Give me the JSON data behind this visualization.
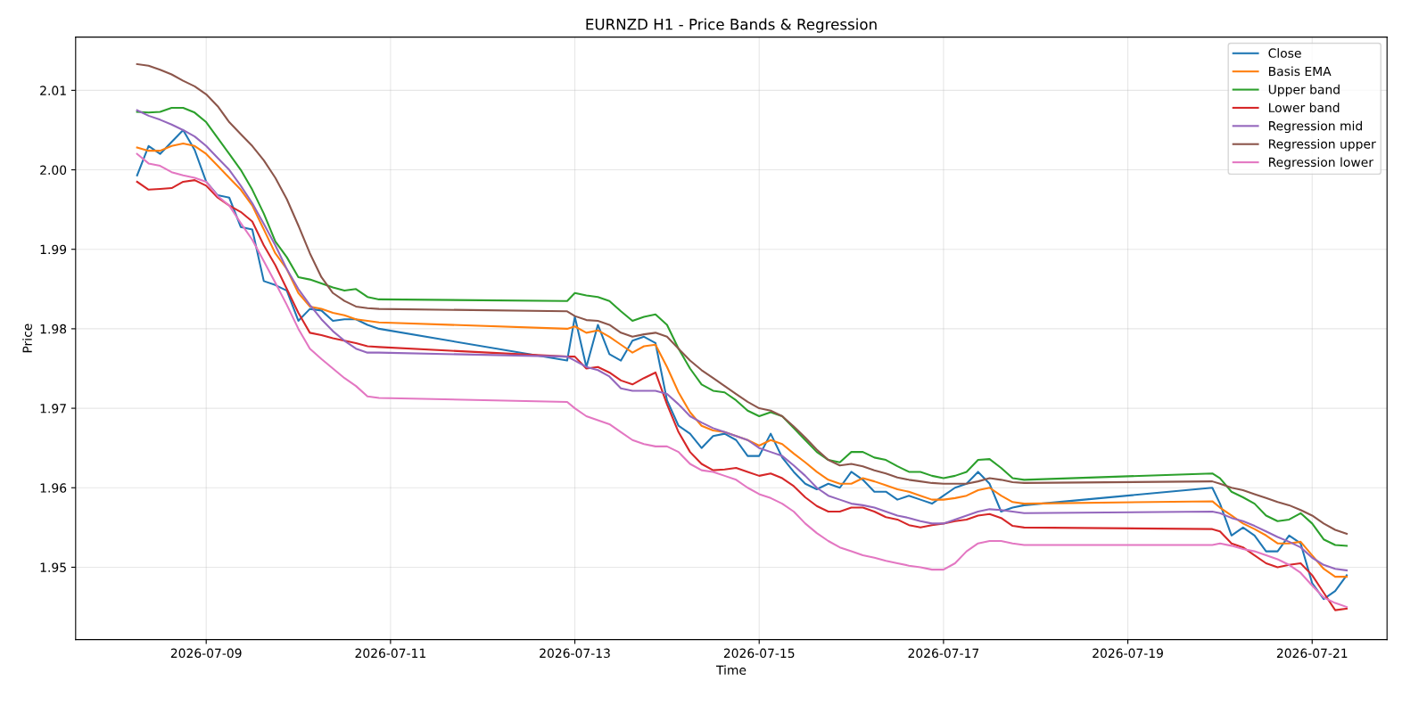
{
  "chart_data": {
    "type": "line",
    "title": "EURNZD H1 - Price Bands & Regression",
    "xlabel": "Time",
    "ylabel": "Price",
    "x": [
      "2026-07-08T06:00",
      "2026-07-08T09:00",
      "2026-07-08T12:00",
      "2026-07-08T15:00",
      "2026-07-08T18:00",
      "2026-07-08T21:00",
      "2026-07-09T00:00",
      "2026-07-09T03:00",
      "2026-07-09T06:00",
      "2026-07-09T09:00",
      "2026-07-09T12:00",
      "2026-07-09T15:00",
      "2026-07-09T18:00",
      "2026-07-09T21:00",
      "2026-07-10T00:00",
      "2026-07-10T03:00",
      "2026-07-10T06:00",
      "2026-07-10T09:00",
      "2026-07-10T12:00",
      "2026-07-10T15:00",
      "2026-07-10T18:00",
      "2026-07-10T21:00",
      "2026-07-12T22:00",
      "2026-07-13T00:00",
      "2026-07-13T03:00",
      "2026-07-13T06:00",
      "2026-07-13T09:00",
      "2026-07-13T12:00",
      "2026-07-13T15:00",
      "2026-07-13T18:00",
      "2026-07-13T21:00",
      "2026-07-14T00:00",
      "2026-07-14T03:00",
      "2026-07-14T06:00",
      "2026-07-14T09:00",
      "2026-07-14T12:00",
      "2026-07-14T15:00",
      "2026-07-14T18:00",
      "2026-07-14T21:00",
      "2026-07-15T00:00",
      "2026-07-15T03:00",
      "2026-07-15T06:00",
      "2026-07-15T09:00",
      "2026-07-15T12:00",
      "2026-07-15T15:00",
      "2026-07-15T18:00",
      "2026-07-15T21:00",
      "2026-07-16T00:00",
      "2026-07-16T03:00",
      "2026-07-16T06:00",
      "2026-07-16T09:00",
      "2026-07-16T12:00",
      "2026-07-16T15:00",
      "2026-07-16T18:00",
      "2026-07-16T21:00",
      "2026-07-17T00:00",
      "2026-07-17T03:00",
      "2026-07-17T06:00",
      "2026-07-17T09:00",
      "2026-07-17T12:00",
      "2026-07-17T15:00",
      "2026-07-17T18:00",
      "2026-07-17T21:00",
      "2026-07-19T22:00",
      "2026-07-20T00:00",
      "2026-07-20T03:00",
      "2026-07-20T06:00",
      "2026-07-20T09:00",
      "2026-07-20T12:00",
      "2026-07-20T15:00",
      "2026-07-20T18:00",
      "2026-07-20T21:00",
      "2026-07-21T00:00",
      "2026-07-21T03:00",
      "2026-07-21T06:00",
      "2026-07-21T09:00"
    ],
    "series": [
      {
        "name": "Close",
        "color": "#1f77b4",
        "values": [
          1.9993,
          2.003,
          2.002,
          2.0035,
          2.005,
          2.0025,
          1.9985,
          1.9968,
          1.9965,
          1.9928,
          1.9925,
          1.986,
          1.9855,
          1.9848,
          1.981,
          1.9825,
          1.9823,
          1.981,
          1.9812,
          1.9812,
          1.9805,
          1.98,
          1.976,
          1.9815,
          1.9752,
          1.9805,
          1.9768,
          1.976,
          1.9785,
          1.979,
          1.9782,
          1.971,
          1.9678,
          1.9668,
          1.965,
          1.9665,
          1.9668,
          1.966,
          1.964,
          1.964,
          1.9668,
          1.9638,
          1.962,
          1.9605,
          1.9598,
          1.9605,
          1.96,
          1.962,
          1.961,
          1.9595,
          1.9595,
          1.9585,
          1.959,
          1.9585,
          1.958,
          1.959,
          1.96,
          1.9605,
          1.962,
          1.9605,
          1.957,
          1.9575,
          1.9578,
          1.96,
          1.958,
          1.954,
          1.955,
          1.954,
          1.952,
          1.952,
          1.954,
          1.953,
          1.948,
          1.946,
          1.947,
          1.949
        ]
      },
      {
        "name": "Basis EMA",
        "color": "#ff7f0e",
        "values": [
          2.0028,
          2.0024,
          2.0024,
          2.003,
          2.0033,
          2.003,
          2.002,
          2.0005,
          1.999,
          1.9975,
          1.9955,
          1.9925,
          1.9895,
          1.9875,
          1.9845,
          1.9828,
          1.9825,
          1.982,
          1.9817,
          1.9812,
          1.981,
          1.9808,
          1.98,
          1.9803,
          1.9795,
          1.9798,
          1.979,
          1.978,
          1.977,
          1.9778,
          1.978,
          1.9752,
          1.972,
          1.9695,
          1.9678,
          1.9672,
          1.967,
          1.9665,
          1.966,
          1.9653,
          1.966,
          1.9655,
          1.9643,
          1.9632,
          1.962,
          1.961,
          1.9605,
          1.9605,
          1.9612,
          1.9608,
          1.9603,
          1.9598,
          1.9595,
          1.959,
          1.9585,
          1.9585,
          1.9587,
          1.959,
          1.9597,
          1.96,
          1.959,
          1.9582,
          1.958,
          1.9583,
          1.9575,
          1.9565,
          1.9555,
          1.9548,
          1.954,
          1.953,
          1.953,
          1.9532,
          1.9515,
          1.9498,
          1.9488,
          1.9488
        ]
      },
      {
        "name": "Upper band",
        "color": "#2ca02c",
        "values": [
          2.0073,
          2.0072,
          2.0073,
          2.0078,
          2.0078,
          2.0072,
          2.006,
          2.004,
          2.002,
          2.0,
          1.9975,
          1.9945,
          1.991,
          1.989,
          1.9865,
          1.9862,
          1.9857,
          1.9852,
          1.9848,
          1.985,
          1.984,
          1.9837,
          1.9835,
          1.9845,
          1.9842,
          1.984,
          1.9835,
          1.9822,
          1.981,
          1.9815,
          1.9818,
          1.9805,
          1.9775,
          1.975,
          1.973,
          1.9722,
          1.972,
          1.971,
          1.9697,
          1.969,
          1.9695,
          1.969,
          1.9675,
          1.966,
          1.9645,
          1.9635,
          1.9632,
          1.9645,
          1.9645,
          1.9638,
          1.9635,
          1.9627,
          1.962,
          1.962,
          1.9615,
          1.9612,
          1.9615,
          1.962,
          1.9635,
          1.9636,
          1.9625,
          1.9612,
          1.961,
          1.9618,
          1.9612,
          1.9595,
          1.9588,
          1.958,
          1.9565,
          1.9558,
          1.956,
          1.9568,
          1.9555,
          1.9535,
          1.9528,
          1.9527
        ]
      },
      {
        "name": "Lower band",
        "color": "#d62728",
        "values": [
          1.9985,
          1.9975,
          1.9976,
          1.9977,
          1.9985,
          1.9987,
          1.998,
          1.9965,
          1.9955,
          1.9947,
          1.9935,
          1.9905,
          1.988,
          1.985,
          1.982,
          1.9795,
          1.9792,
          1.9788,
          1.9785,
          1.9782,
          1.9778,
          1.9777,
          1.9765,
          1.9765,
          1.975,
          1.9752,
          1.9745,
          1.9735,
          1.973,
          1.9738,
          1.9745,
          1.9705,
          1.967,
          1.9645,
          1.963,
          1.9622,
          1.9623,
          1.9625,
          1.962,
          1.9615,
          1.9618,
          1.9612,
          1.9602,
          1.9588,
          1.9577,
          1.957,
          1.957,
          1.9575,
          1.9575,
          1.957,
          1.9563,
          1.956,
          1.9553,
          1.955,
          1.9553,
          1.9555,
          1.9558,
          1.956,
          1.9565,
          1.9567,
          1.9562,
          1.9552,
          1.955,
          1.9548,
          1.9545,
          1.953,
          1.9525,
          1.9515,
          1.9505,
          1.95,
          1.9503,
          1.9505,
          1.949,
          1.9468,
          1.9446,
          1.9448
        ]
      },
      {
        "name": "Regression mid",
        "color": "#9467bd",
        "values": [
          2.0075,
          2.0068,
          2.0063,
          2.0057,
          2.005,
          2.0042,
          2.003,
          2.0015,
          2.0,
          1.998,
          1.9958,
          1.9932,
          1.9905,
          1.9875,
          1.985,
          1.983,
          1.9812,
          1.9797,
          1.9785,
          1.9775,
          1.977,
          1.977,
          1.9765,
          1.976,
          1.9752,
          1.9748,
          1.974,
          1.9725,
          1.9722,
          1.9722,
          1.9722,
          1.9718,
          1.9705,
          1.969,
          1.9682,
          1.9675,
          1.967,
          1.9665,
          1.966,
          1.965,
          1.9645,
          1.964,
          1.9628,
          1.9615,
          1.96,
          1.959,
          1.9585,
          1.958,
          1.9578,
          1.9575,
          1.957,
          1.9565,
          1.9562,
          1.9558,
          1.9555,
          1.9555,
          1.956,
          1.9565,
          1.957,
          1.9573,
          1.9572,
          1.957,
          1.9568,
          1.957,
          1.9568,
          1.9562,
          1.9558,
          1.9552,
          1.9545,
          1.9538,
          1.9532,
          1.9525,
          1.9512,
          1.9503,
          1.9498,
          1.9496
        ]
      },
      {
        "name": "Regression upper",
        "color": "#8c564b",
        "values": [
          2.0133,
          2.0131,
          2.0126,
          2.012,
          2.0112,
          2.0105,
          2.0095,
          2.008,
          2.006,
          2.0045,
          2.003,
          2.0012,
          1.999,
          1.9963,
          1.993,
          1.9895,
          1.9865,
          1.9845,
          1.9835,
          1.9828,
          1.9826,
          1.9825,
          1.9822,
          1.9816,
          1.9811,
          1.981,
          1.9805,
          1.9795,
          1.979,
          1.9793,
          1.9795,
          1.979,
          1.9775,
          1.976,
          1.9748,
          1.9738,
          1.9728,
          1.9718,
          1.9708,
          1.97,
          1.9697,
          1.969,
          1.9677,
          1.9663,
          1.9648,
          1.9635,
          1.9628,
          1.963,
          1.9627,
          1.9622,
          1.9618,
          1.9613,
          1.961,
          1.9608,
          1.9606,
          1.9605,
          1.9605,
          1.9605,
          1.9608,
          1.9612,
          1.961,
          1.9607,
          1.9606,
          1.9608,
          1.9605,
          1.96,
          1.9597,
          1.9592,
          1.9587,
          1.9582,
          1.9578,
          1.9572,
          1.9565,
          1.9555,
          1.9547,
          1.9542
        ]
      },
      {
        "name": "Regression lower",
        "color": "#e377c2",
        "values": [
          2.002,
          2.0008,
          2.0005,
          1.9997,
          1.9993,
          1.999,
          1.9985,
          1.9967,
          1.9955,
          1.9933,
          1.9912,
          1.9885,
          1.9858,
          1.983,
          1.98,
          1.9775,
          1.9762,
          1.975,
          1.9738,
          1.9728,
          1.9715,
          1.9713,
          1.9708,
          1.97,
          1.969,
          1.9685,
          1.968,
          1.967,
          1.966,
          1.9655,
          1.9652,
          1.9652,
          1.9645,
          1.963,
          1.9622,
          1.962,
          1.9615,
          1.961,
          1.96,
          1.9592,
          1.9587,
          1.958,
          1.957,
          1.9555,
          1.9543,
          1.9533,
          1.9525,
          1.952,
          1.9515,
          1.9512,
          1.9508,
          1.9505,
          1.9502,
          1.95,
          1.9497,
          1.9497,
          1.9505,
          1.952,
          1.953,
          1.9533,
          1.9533,
          1.953,
          1.9528,
          1.9528,
          1.953,
          1.9527,
          1.9523,
          1.952,
          1.9515,
          1.951,
          1.9503,
          1.9493,
          1.9477,
          1.9462,
          1.9455,
          1.945
        ]
      }
    ],
    "xlim": [
      "2026-07-07T14:00",
      "2026-07-21T19:30"
    ],
    "ylim": [
      1.9409,
      2.0167
    ],
    "xticks": [
      "2026-07-09",
      "2026-07-11",
      "2026-07-13",
      "2026-07-15",
      "2026-07-17",
      "2026-07-19",
      "2026-07-21"
    ],
    "yticks": [
      1.95,
      1.96,
      1.97,
      1.98,
      1.99,
      {
        "value": 2.0,
        "label": "2.00"
      },
      2.01
    ],
    "grid": true,
    "legend": "top right",
    "marker": "none",
    "line_style": "solid"
  }
}
